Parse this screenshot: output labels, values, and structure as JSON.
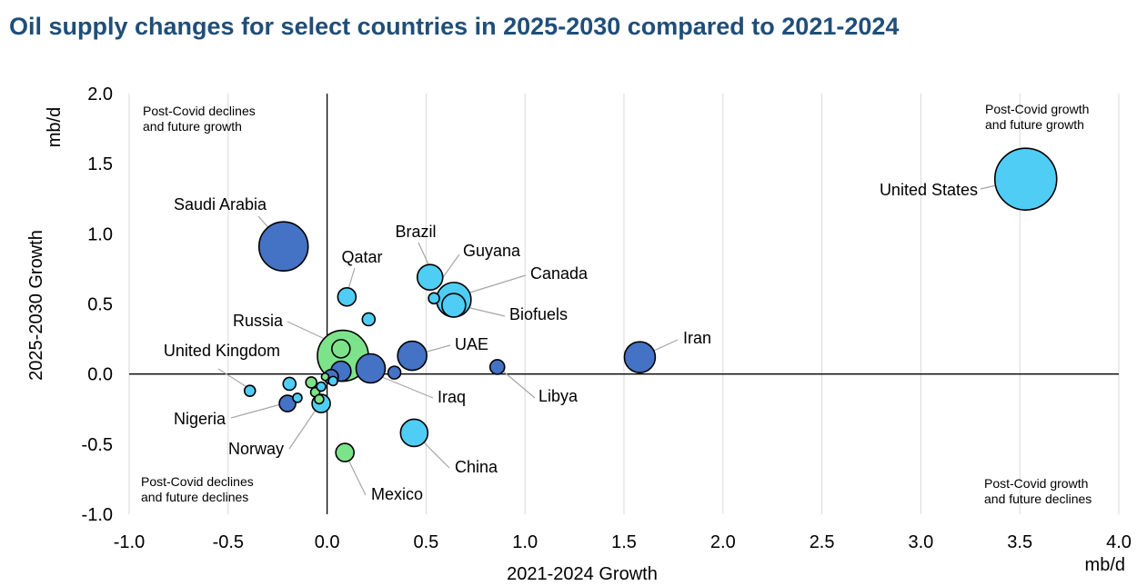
{
  "title": "Oil supply changes for select countries in 2025-2030 compared to 2021-2024",
  "chart_data": {
    "type": "scatter",
    "xlabel": "2021-2024 Growth",
    "ylabel": "2025-2030 Growth",
    "x_unit": "mb/d",
    "y_unit": "mb/d",
    "xlim": [
      -1.0,
      4.0
    ],
    "ylim": [
      -1.0,
      2.0
    ],
    "x_ticks": [
      "-1.0",
      "-0.5",
      "0.0",
      "0.5",
      "1.0",
      "1.5",
      "2.0",
      "2.5",
      "3.0",
      "3.5",
      "4.0"
    ],
    "y_ticks": [
      "2.0",
      "1.5",
      "1.0",
      "0.5",
      "0.0",
      "-0.5",
      "-1.0"
    ],
    "grid": "vertical",
    "quadrant_labels": {
      "top_left": [
        "Post-Covid declines",
        "and future growth"
      ],
      "top_right": [
        "Post-Covid growth",
        "and future growth"
      ],
      "bottom_left": [
        "Post-Covid declines",
        "and future declines"
      ],
      "bottom_right": [
        "Post-Covid growth",
        "and future declines"
      ]
    },
    "colors": {
      "light_blue": "#4fcdf5",
      "dark_blue": "#4472c4",
      "green": "#7ce38b",
      "outline": "#000000"
    },
    "points": [
      {
        "label": "United States",
        "x": 3.53,
        "y": 1.39,
        "size": 34,
        "color": "light_blue"
      },
      {
        "label": "Saudi Arabia",
        "x": -0.22,
        "y": 0.91,
        "size": 27,
        "color": "dark_blue"
      },
      {
        "label": "Iran",
        "x": 1.58,
        "y": 0.12,
        "size": 17,
        "color": "dark_blue"
      },
      {
        "label": "Brazil",
        "x": 0.52,
        "y": 0.69,
        "size": 14,
        "color": "light_blue"
      },
      {
        "label": "Guyana",
        "x": 0.54,
        "y": 0.54,
        "size": 6,
        "color": "light_blue"
      },
      {
        "label": "Canada",
        "x": 0.64,
        "y": 0.53,
        "size": 19,
        "color": "light_blue"
      },
      {
        "label": "Biofuels",
        "x": 0.64,
        "y": 0.49,
        "size": 13,
        "color": "light_blue"
      },
      {
        "label": "Qatar",
        "x": 0.1,
        "y": 0.55,
        "size": 10,
        "color": "light_blue"
      },
      {
        "label": "",
        "x": 0.21,
        "y": 0.39,
        "size": 7,
        "color": "light_blue"
      },
      {
        "label": "UAE",
        "x": 0.43,
        "y": 0.13,
        "size": 16,
        "color": "dark_blue"
      },
      {
        "label": "Libya",
        "x": 0.86,
        "y": 0.05,
        "size": 8,
        "color": "dark_blue"
      },
      {
        "label": "",
        "x": 0.34,
        "y": 0.01,
        "size": 7,
        "color": "dark_blue"
      },
      {
        "label": "Iraq",
        "x": 0.22,
        "y": 0.04,
        "size": 16,
        "color": "dark_blue"
      },
      {
        "label": "",
        "x": 0.07,
        "y": 0.02,
        "size": 11,
        "color": "dark_blue"
      },
      {
        "label": "",
        "x": 0.02,
        "y": -0.02,
        "size": 8,
        "color": "dark_blue"
      },
      {
        "label": "China",
        "x": 0.44,
        "y": -0.42,
        "size": 15,
        "color": "light_blue"
      },
      {
        "label": "Mexico",
        "x": 0.09,
        "y": -0.56,
        "size": 10,
        "color": "green"
      },
      {
        "label": "",
        "x": 0.08,
        "y": 0.13,
        "size": 28,
        "color": "green"
      },
      {
        "label": "Russia",
        "x": 0.07,
        "y": 0.18,
        "size": 10,
        "color": "green"
      },
      {
        "label": "United Kingdom",
        "x": -0.39,
        "y": -0.12,
        "size": 6,
        "color": "light_blue"
      },
      {
        "label": "",
        "x": -0.19,
        "y": -0.07,
        "size": 7,
        "color": "light_blue"
      },
      {
        "label": "",
        "x": -0.15,
        "y": -0.17,
        "size": 5,
        "color": "light_blue"
      },
      {
        "label": "Nigeria",
        "x": -0.2,
        "y": -0.21,
        "size": 9,
        "color": "dark_blue"
      },
      {
        "label": "Norway",
        "x": -0.03,
        "y": -0.21,
        "size": 10,
        "color": "light_blue"
      },
      {
        "label": "",
        "x": -0.08,
        "y": -0.06,
        "size": 6,
        "color": "green"
      },
      {
        "label": "",
        "x": -0.06,
        "y": -0.13,
        "size": 5,
        "color": "green"
      },
      {
        "label": "",
        "x": -0.04,
        "y": -0.18,
        "size": 5,
        "color": "green"
      },
      {
        "label": "",
        "x": -0.03,
        "y": -0.09,
        "size": 5,
        "color": "light_blue"
      },
      {
        "label": "",
        "x": -0.01,
        "y": -0.02,
        "size": 4,
        "color": "green"
      },
      {
        "label": "",
        "x": 0.03,
        "y": -0.05,
        "size": 5,
        "color": "light_blue"
      }
    ],
    "label_leaders": [
      {
        "label": "United States",
        "point": 0,
        "side": "left"
      },
      {
        "label": "Saudi Arabia",
        "point": 1,
        "side": "above"
      },
      {
        "label": "Iran",
        "point": 2,
        "side": "right"
      },
      {
        "label": "Brazil",
        "point": 3,
        "side": "above"
      },
      {
        "label": "Guyana",
        "point": 4,
        "side": "right"
      },
      {
        "label": "Canada",
        "point": 5,
        "side": "right"
      },
      {
        "label": "Biofuels",
        "point": 6,
        "side": "right"
      },
      {
        "label": "Qatar",
        "point": 7,
        "side": "above"
      },
      {
        "label": "UAE",
        "point": 9,
        "side": "right"
      },
      {
        "label": "Libya",
        "point": 10,
        "side": "right"
      },
      {
        "label": "Iraq",
        "point": 12,
        "side": "right"
      },
      {
        "label": "China",
        "point": 15,
        "side": "right"
      },
      {
        "label": "Mexico",
        "point": 16,
        "side": "right"
      },
      {
        "label": "Russia",
        "point": 18,
        "side": "left"
      },
      {
        "label": "United Kingdom",
        "point": 19,
        "side": "left"
      },
      {
        "label": "Nigeria",
        "point": 22,
        "side": "left"
      },
      {
        "label": "Norway",
        "point": 23,
        "side": "left"
      }
    ]
  }
}
